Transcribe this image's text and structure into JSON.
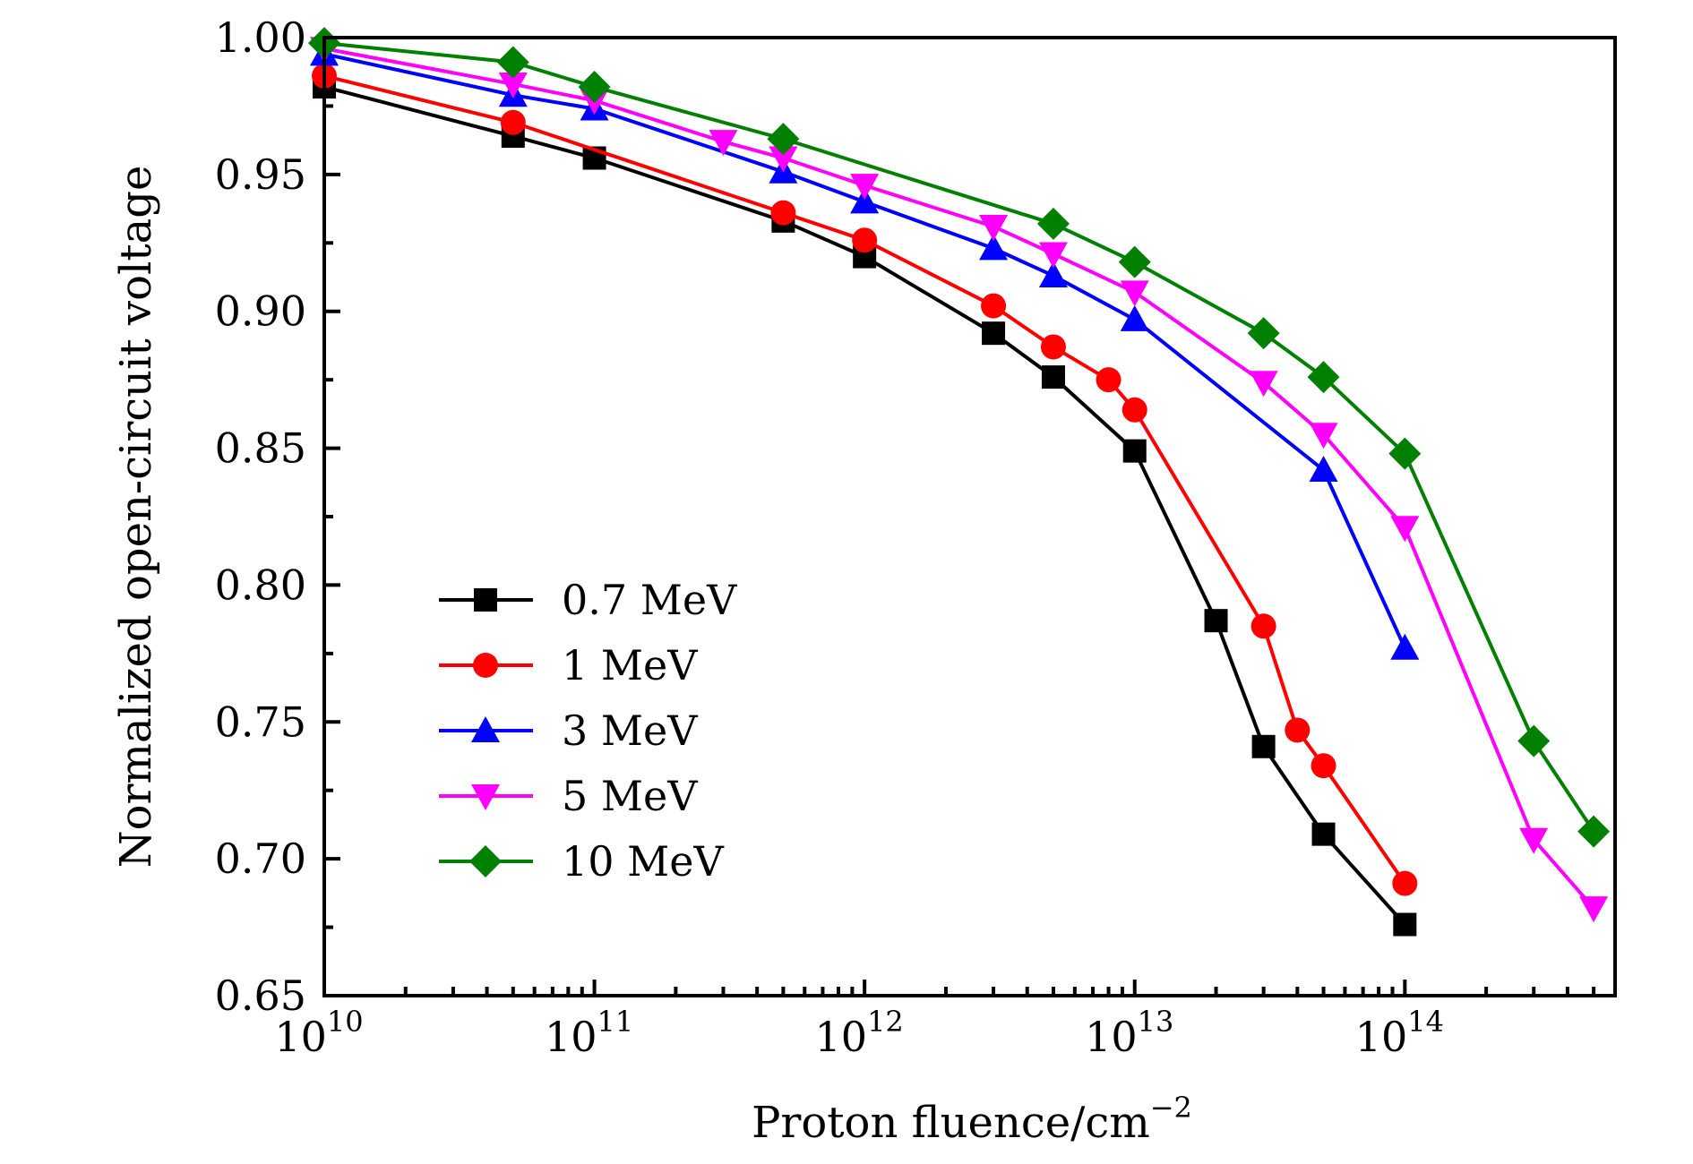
{
  "chart_data": {
    "type": "line",
    "title": "",
    "xlabel": "Proton fluence/cm",
    "xlabel_sup": "−2",
    "ylabel": "Normalized open-circuit voltage",
    "xscale": "log",
    "xlim": [
      10000000000.0,
      600000000000000.0
    ],
    "ylim": [
      0.65,
      1.0
    ],
    "xticks": [
      {
        "value": 10000000000.0,
        "base": "10",
        "exp": "10"
      },
      {
        "value": 100000000000.0,
        "base": "10",
        "exp": "11"
      },
      {
        "value": 1000000000000.0,
        "base": "10",
        "exp": "12"
      },
      {
        "value": 10000000000000.0,
        "base": "10",
        "exp": "13"
      },
      {
        "value": 100000000000000.0,
        "base": "10",
        "exp": "14"
      }
    ],
    "yticks": [
      "0.65",
      "0.70",
      "0.75",
      "0.80",
      "0.85",
      "0.90",
      "0.95",
      "1.00"
    ],
    "grid": false,
    "legend_position": "center-left",
    "series": [
      {
        "name": "0.7 MeV",
        "color": "#000000",
        "marker": "square",
        "x": [
          10000000000.0,
          50000000000.0,
          100000000000.0,
          500000000000.0,
          1000000000000.0,
          3000000000000.0,
          5000000000000.0,
          10000000000000.0,
          20000000000000.0,
          30000000000000.0,
          50000000000000.0,
          100000000000000.0
        ],
        "y": [
          0.982,
          0.964,
          0.956,
          0.933,
          0.92,
          0.892,
          0.876,
          0.849,
          0.787,
          0.741,
          0.709,
          0.676
        ]
      },
      {
        "name": "1 MeV",
        "color": "#ff0000",
        "marker": "circle",
        "x": [
          10000000000.0,
          50000000000.0,
          500000000000.0,
          1000000000000.0,
          3000000000000.0,
          5000000000000.0,
          8000000000000.0,
          10000000000000.0,
          30000000000000.0,
          40000000000000.0,
          50000000000000.0,
          100000000000000.0
        ],
        "y": [
          0.986,
          0.969,
          0.936,
          0.926,
          0.902,
          0.887,
          0.875,
          0.864,
          0.785,
          0.747,
          0.734,
          0.691
        ]
      },
      {
        "name": "3 MeV",
        "color": "#0000ff",
        "marker": "triangle-up",
        "x": [
          10000000000.0,
          50000000000.0,
          100000000000.0,
          500000000000.0,
          1000000000000.0,
          3000000000000.0,
          5000000000000.0,
          10000000000000.0,
          50000000000000.0,
          100000000000000.0
        ],
        "y": [
          0.994,
          0.979,
          0.974,
          0.951,
          0.94,
          0.923,
          0.913,
          0.897,
          0.842,
          0.777
        ]
      },
      {
        "name": "5 MeV",
        "color": "#ff00ff",
        "marker": "triangle-down",
        "x": [
          10000000000.0,
          50000000000.0,
          100000000000.0,
          300000000000.0,
          500000000000.0,
          1000000000000.0,
          3000000000000.0,
          5000000000000.0,
          10000000000000.0,
          30000000000000.0,
          50000000000000.0,
          100000000000000.0,
          300000000000000.0,
          500000000000000.0
        ],
        "y": [
          0.996,
          0.983,
          0.977,
          0.962,
          0.956,
          0.946,
          0.931,
          0.921,
          0.907,
          0.874,
          0.855,
          0.821,
          0.707,
          0.682
        ]
      },
      {
        "name": "10 MeV",
        "color": "#008000",
        "marker": "diamond",
        "x": [
          10000000000.0,
          50000000000.0,
          100000000000.0,
          500000000000.0,
          5000000000000.0,
          10000000000000.0,
          30000000000000.0,
          50000000000000.0,
          100000000000000.0,
          300000000000000.0,
          500000000000000.0
        ],
        "y": [
          0.998,
          0.991,
          0.982,
          0.963,
          0.932,
          0.918,
          0.892,
          0.876,
          0.848,
          0.743,
          0.71
        ]
      }
    ]
  }
}
